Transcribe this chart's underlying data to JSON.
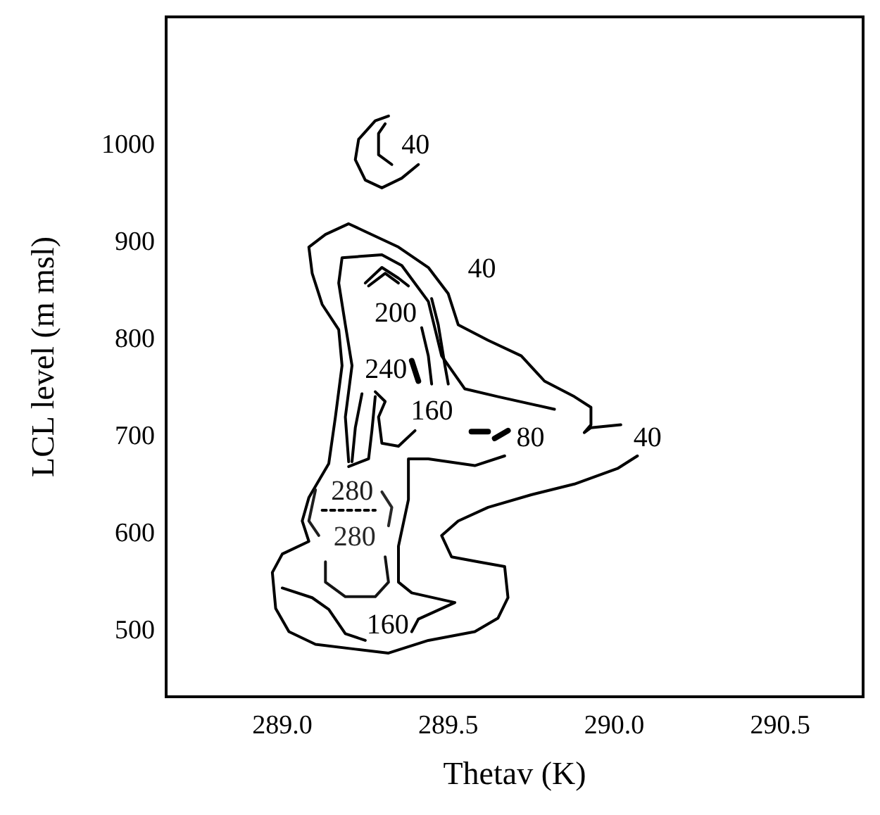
{
  "chart_data": {
    "type": "line",
    "xlabel": "Thetav (K)",
    "ylabel": "LCL level (m msl)",
    "xlim": [
      288.65,
      290.75
    ],
    "ylim": [
      430,
      1130
    ],
    "xticks": [
      {
        "value": 289,
        "label": "289.0"
      },
      {
        "value": 289.5,
        "label": "289.5"
      },
      {
        "value": 290,
        "label": "290.0"
      },
      {
        "value": 290.5,
        "label": "290.5"
      }
    ],
    "yticks": [
      500,
      600,
      700,
      800,
      900,
      1000
    ],
    "series": [
      {
        "name": "40",
        "color": "#000000",
        "x": [
          290.07,
          290.01,
          289.88,
          289.75,
          289.62,
          289.53,
          289.48,
          289.51,
          289.59,
          289.67,
          289.68,
          289.65,
          289.58,
          289.44,
          289.32,
          289.22,
          289.1,
          289.02,
          288.98,
          288.97,
          289.0,
          289.08,
          289.06,
          289.08,
          289.14,
          289.16,
          289.18,
          289.17,
          289.12,
          289.09,
          289.08,
          289.13,
          289.2,
          289.25,
          289.35,
          289.44,
          289.5,
          289.53,
          289.62,
          289.72,
          289.79,
          289.88,
          289.93,
          289.93,
          289.91,
          289.93,
          290.02
        ],
        "values": [
          678,
          665,
          649,
          638,
          625,
          611,
          596,
          574,
          569,
          564,
          532,
          511,
          497,
          488,
          475,
          479,
          484,
          497,
          521,
          558,
          577,
          590,
          611,
          635,
          670,
          718,
          771,
          808,
          834,
          866,
          893,
          906,
          917,
          909,
          893,
          872,
          845,
          813,
          797,
          781,
          755,
          739,
          728,
          710,
          702,
          707,
          710
        ]
      },
      {
        "name": "40",
        "color": "#000000",
        "x": [
          289.32,
          289.28,
          289.23,
          289.22,
          289.25,
          289.3,
          289.36,
          289.41
        ],
        "values": [
          1028,
          1023,
          1004,
          983,
          962,
          954,
          964,
          978
        ]
      },
      {
        "color": "#000000",
        "x": [
          289.31,
          289.29,
          289.29,
          289.33
        ],
        "values": [
          1020,
          1010,
          988,
          978
        ]
      },
      {
        "name": "80",
        "color": "#000000",
        "x": [
          289.82,
          289.65,
          289.55,
          289.48,
          289.44,
          289.36,
          289.3,
          289.18,
          289.17,
          289.19,
          289.21,
          289.19,
          289.2
        ],
        "values": [
          726,
          739,
          747,
          781,
          837,
          874,
          885,
          882,
          856,
          813,
          771,
          718,
          672
        ]
      },
      {
        "name": "160",
        "color": "#000000",
        "x": [
          289.67,
          289.58,
          289.44,
          289.38,
          289.38,
          289.35,
          289.35,
          289.39,
          289.52,
          289.41,
          289.39
        ],
        "values": [
          678,
          668,
          675,
          675,
          633,
          585,
          548,
          537,
          527,
          510,
          497
        ]
      },
      {
        "name": "240",
        "color": "#000000",
        "x": [
          289.24,
          289.22,
          289.21
        ],
        "values": [
          742,
          707,
          672
        ]
      },
      {
        "color": "#000000",
        "x": [
          289.28,
          289.27,
          289.26,
          289.2
        ],
        "values": [
          739,
          704,
          675,
          667
        ]
      },
      {
        "color": "#000000",
        "x": [
          289.45,
          289.47,
          289.49,
          289.5
        ],
        "values": [
          840,
          813,
          771,
          752
        ]
      },
      {
        "color": "#000000",
        "x": [
          289.42,
          289.44,
          289.45
        ],
        "values": [
          810,
          781,
          752
        ]
      },
      {
        "color": "#000000",
        "x": [
          289.39,
          289.41
        ],
        "values": [
          776,
          755
        ]
      },
      {
        "name": "200",
        "color": "#000000",
        "x": [
          289.25,
          289.3,
          289.35,
          289.38
        ],
        "values": [
          856,
          872,
          861,
          853
        ]
      },
      {
        "color": "#000000",
        "x": [
          289.26,
          289.31,
          289.35
        ],
        "values": [
          853,
          866,
          856
        ]
      },
      {
        "name": "160",
        "color": "#000000",
        "x": [
          289.28,
          289.31,
          289.29,
          289.3,
          289.35,
          289.4
        ],
        "values": [
          744,
          734,
          718,
          691,
          688,
          704
        ]
      },
      {
        "color": "#000000",
        "x": [
          289.57,
          289.62
        ],
        "values": [
          703,
          703
        ]
      },
      {
        "color": "#000000",
        "x": [
          289.64,
          289.68
        ],
        "values": [
          696,
          704
        ]
      },
      {
        "color": "#000000",
        "x": [
          289.0,
          289.09,
          289.14,
          289.19,
          289.25
        ],
        "values": [
          542,
          532,
          520,
          495,
          488
        ]
      },
      {
        "color": "#141414",
        "x": [
          289.13,
          289.13,
          289.19,
          289.28,
          289.32,
          289.31
        ],
        "values": [
          569,
          548,
          533,
          533,
          548,
          574
        ]
      },
      {
        "name": "280",
        "color": "#1e1e1e",
        "x": [
          289.1,
          289.08,
          289.11
        ],
        "values": [
          643,
          611,
          596
        ]
      },
      {
        "name": "280",
        "color": "#282828",
        "x": [
          289.3,
          289.33,
          289.32
        ],
        "values": [
          641,
          625,
          606
        ]
      },
      {
        "color": "#000000",
        "line_style": "dashed",
        "x": [
          289.12,
          289.28
        ],
        "values": [
          622,
          622
        ]
      }
    ]
  }
}
